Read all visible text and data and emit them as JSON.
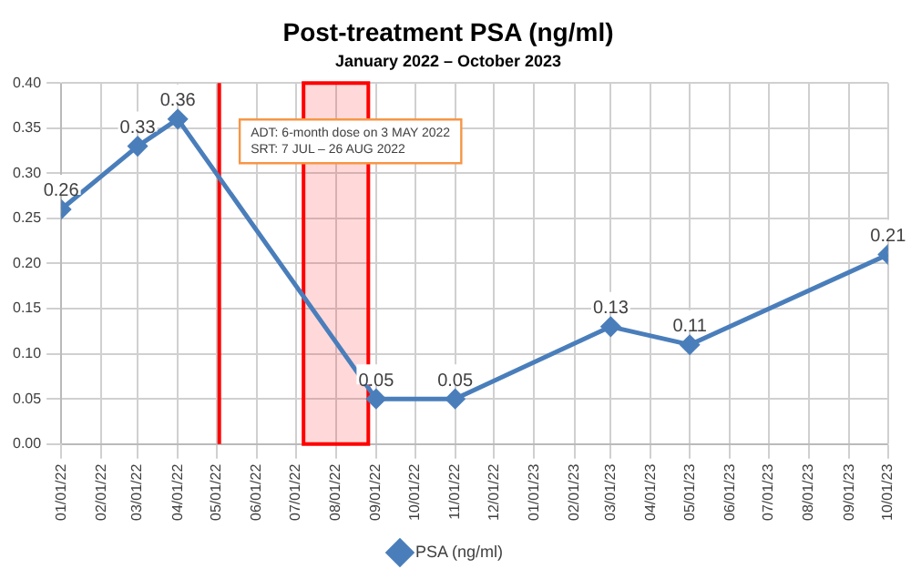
{
  "chart_data": {
    "type": "line",
    "title": "Post-treatment PSA (ng/ml)",
    "subtitle": "January 2022 – October 2023",
    "x": [
      "2022-01-01",
      "2022-03-01",
      "2022-04-01",
      "2022-09-01",
      "2022-11-01",
      "2023-03-01",
      "2023-05-01",
      "2023-10-01"
    ],
    "series": [
      {
        "name": "PSA (ng/ml)",
        "color": "#4a7ebb",
        "values": [
          0.26,
          0.33,
          0.36,
          0.05,
          0.05,
          0.13,
          0.11,
          0.21
        ]
      }
    ],
    "xlim": [
      "2022-01-01",
      "2023-10-01"
    ],
    "xticks": [
      {
        "value": "2022-01-01",
        "label": "01/01/22"
      },
      {
        "value": "2022-02-01",
        "label": "02/01/22"
      },
      {
        "value": "2022-03-01",
        "label": "03/01/22"
      },
      {
        "value": "2022-04-01",
        "label": "04/01/22"
      },
      {
        "value": "2022-05-01",
        "label": "05/01/22"
      },
      {
        "value": "2022-06-01",
        "label": "06/01/22"
      },
      {
        "value": "2022-07-01",
        "label": "07/01/22"
      },
      {
        "value": "2022-08-01",
        "label": "08/01/22"
      },
      {
        "value": "2022-09-01",
        "label": "09/01/22"
      },
      {
        "value": "2022-10-01",
        "label": "10/01/22"
      },
      {
        "value": "2022-11-01",
        "label": "11/01/22"
      },
      {
        "value": "2022-12-01",
        "label": "12/01/22"
      },
      {
        "value": "2023-01-01",
        "label": "01/01/23"
      },
      {
        "value": "2023-02-01",
        "label": "02/01/23"
      },
      {
        "value": "2023-03-01",
        "label": "03/01/23"
      },
      {
        "value": "2023-04-01",
        "label": "04/01/23"
      },
      {
        "value": "2023-05-01",
        "label": "05/01/23"
      },
      {
        "value": "2023-06-01",
        "label": "06/01/23"
      },
      {
        "value": "2023-07-01",
        "label": "07/01/23"
      },
      {
        "value": "2023-08-01",
        "label": "08/01/23"
      },
      {
        "value": "2023-09-01",
        "label": "09/01/23"
      },
      {
        "value": "2023-10-01",
        "label": "10/01/23"
      }
    ],
    "ylim": [
      0,
      0.4
    ],
    "yticks": [
      {
        "value": 0,
        "label": "0.00"
      },
      {
        "value": 0.05,
        "label": "0.05"
      },
      {
        "value": 0.1,
        "label": "0.10"
      },
      {
        "value": 0.15,
        "label": "0.15"
      },
      {
        "value": 0.2,
        "label": "0.20"
      },
      {
        "value": 0.25,
        "label": "0.25"
      },
      {
        "value": 0.3,
        "label": "0.30"
      },
      {
        "value": 0.35,
        "label": "0.35"
      },
      {
        "value": 0.4,
        "label": "0.40"
      }
    ],
    "ref_lines": [
      {
        "axis": "x",
        "value": "2022-05-03",
        "color": "#ff0000"
      }
    ],
    "bands": [
      {
        "axis": "x",
        "from": "2022-07-07",
        "to": "2022-08-26",
        "color": "#ff0000"
      }
    ],
    "annotations": [
      "ADT: 6-month dose on 3 MAY 2022",
      "SRT: 7 JUL – 26 AUG 2022"
    ],
    "grid": true,
    "legend": "bottom",
    "marker": "diamond",
    "line_style": "solid",
    "data_labels": true
  }
}
